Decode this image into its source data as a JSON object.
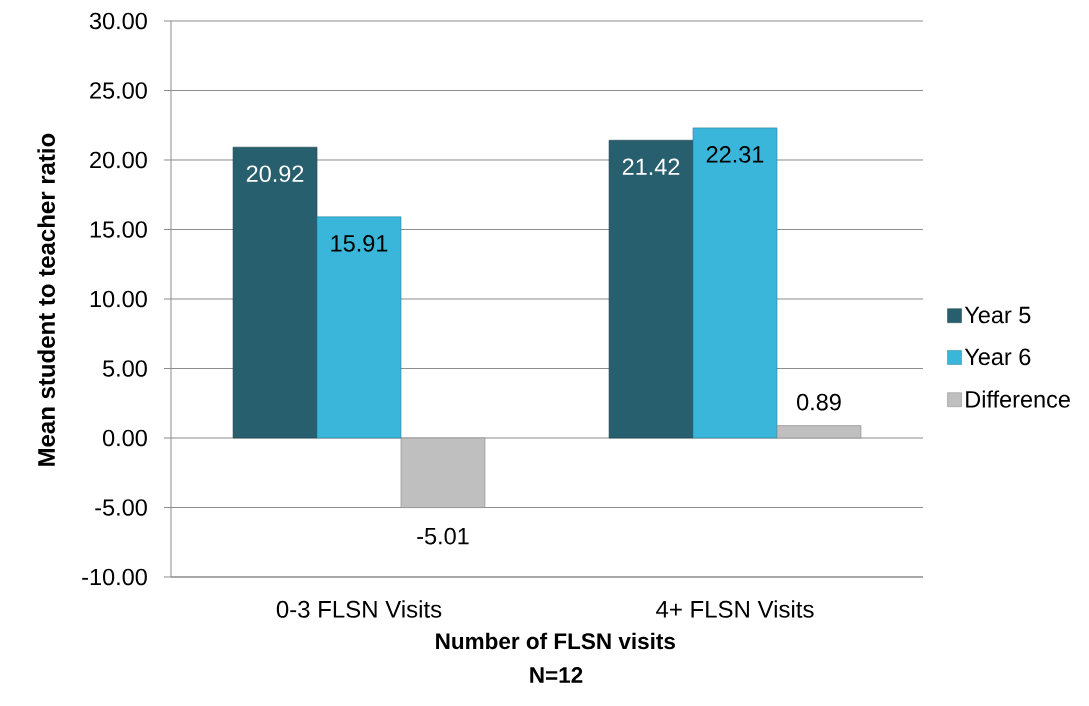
{
  "chart_data": {
    "type": "bar",
    "xlabel": "Number of FLSN visits",
    "ylabel": "Mean student to teacher ratio",
    "annotations": [
      "N=12"
    ],
    "categories": [
      "0-3 FLSN Visits",
      "4+ FLSN Visits"
    ],
    "series": [
      {
        "name": "Year 5",
        "color": "#285f6e",
        "values": [
          20.92,
          21.42
        ],
        "value_labels": [
          "20.92",
          "21.42"
        ]
      },
      {
        "name": "Year 6",
        "color": "#3ab6da",
        "values": [
          15.91,
          22.31
        ],
        "value_labels": [
          "15.91",
          "22.31"
        ]
      },
      {
        "name": "Difference",
        "color": "#bfbfbf",
        "values": [
          -5.01,
          0.89
        ],
        "value_labels": [
          "-5.01",
          "0.89"
        ]
      }
    ],
    "ylim": [
      -10,
      30
    ],
    "yticks": [
      {
        "value": -10,
        "label": "-10.00"
      },
      {
        "value": -5,
        "label": "-5.00"
      },
      {
        "value": 0,
        "label": "0.00"
      },
      {
        "value": 5,
        "label": "5.00"
      },
      {
        "value": 10,
        "label": "10.00"
      },
      {
        "value": 15,
        "label": "15.00"
      },
      {
        "value": 20,
        "label": "20.00"
      },
      {
        "value": 25,
        "label": "25.00"
      },
      {
        "value": 30,
        "label": "30.00"
      }
    ],
    "grid": "y",
    "legend": "right"
  }
}
